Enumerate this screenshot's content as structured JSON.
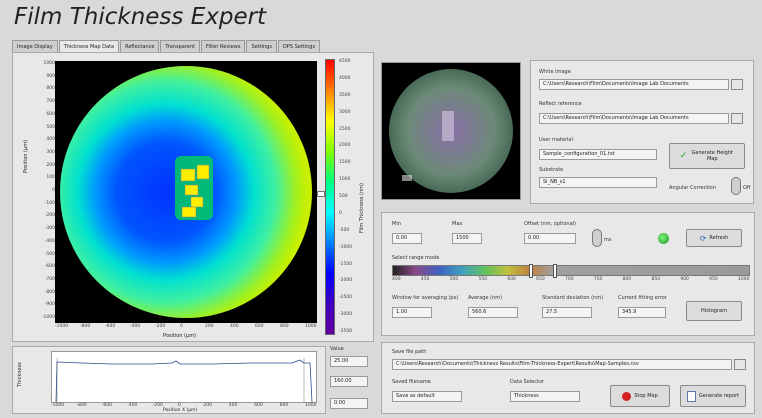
{
  "app": {
    "title": "Film Thickness Expert"
  },
  "tabs": [
    "Image Display",
    "Thickness Map Data",
    "Reflectance",
    "Transparent",
    "Filter Reviews",
    "Settings",
    "DPS Settings"
  ],
  "map": {
    "x_axis_label": "Position (µm)",
    "y_axis_label": "Position (µm)",
    "x_ticks": [
      "-1000",
      "-800",
      "-600",
      "-400",
      "-200",
      "0",
      "200",
      "400",
      "600",
      "800",
      "1000"
    ],
    "y_ticks": [
      "1000",
      "900",
      "800",
      "700",
      "600",
      "500",
      "400",
      "300",
      "200",
      "100",
      "0",
      "-100",
      "-200",
      "-300",
      "-400",
      "-500",
      "-600",
      "-700",
      "-800",
      "-900",
      "-1000"
    ]
  },
  "colorbar": {
    "label": "Film Thickness (nm)",
    "ticks": [
      "4500",
      "4000",
      "3500",
      "3000",
      "2500",
      "2000",
      "1500",
      "1000",
      "500",
      "0",
      "-500",
      "-1000",
      "-1500",
      "-2000",
      "-2500",
      "-3000",
      "-3500"
    ]
  },
  "profile": {
    "y_label": "Thickness",
    "x_label": "Position X (µm)",
    "x_ticks": [
      "-1000",
      "-800",
      "-600",
      "-400",
      "-200",
      "0",
      "200",
      "400",
      "600",
      "800",
      "1000"
    ],
    "side_values": [
      "25.00",
      "160.00",
      "0.00"
    ]
  },
  "file_panel": {
    "white_image_label": "White Image",
    "white_image_path": "C:\\Users\\Research\\Film\\Documents\\Image Lab Documents",
    "reflect_reference_label": "Reflect reference",
    "reflect_reference_path": "C:\\Users\\Research\\Film\\Documents\\Image Lab Documents",
    "user_material_label": "User material",
    "user_material_value": "Sample_configuration_01.txt",
    "substrate_label": "Substrate",
    "substrate_value": "Si_NB_s1",
    "generate_button": "Generate Height Map",
    "angular_correction_label": "Angular Correction",
    "angular_correction_state": "Off"
  },
  "param_panel": {
    "min_label": "Min",
    "min_value": "0.00",
    "max_label": "Max",
    "max_value": "1500",
    "offset_label": "Offset (nm, optional)",
    "offset_value": "0.00",
    "stop_label": "ms",
    "refresh_button": "Refresh",
    "color_range_label": "Select range mode",
    "range_ticks": [
      "400",
      "450",
      "500",
      "550",
      "600",
      "650",
      "700",
      "750",
      "800",
      "850",
      "900",
      "950",
      "1000"
    ],
    "avg_label": "Window for averaging (px)",
    "avg_value": "1.00",
    "average_label": "Average (nm)",
    "average_value": "560.6",
    "stddev_label": "Standard deviation (nm)",
    "stddev_value": "27.5",
    "error_label": "Current fitting error",
    "error_value": "345.9",
    "histogram_button": "Histogram"
  },
  "save_panel": {
    "save_path_label": "Save file path",
    "save_path_value": "C:\\Users\\Research\\Documents\\Thickness Results\\Film-Thickness-Expert\\Results\\Map-Samples.csv",
    "save_mode_label": "Saved filename",
    "save_mode_value": "Save as default",
    "data_type_label": "Data Selector",
    "data_type_value": "Thickness",
    "stop_button": "Stop Map",
    "save_button": "Generate report"
  }
}
